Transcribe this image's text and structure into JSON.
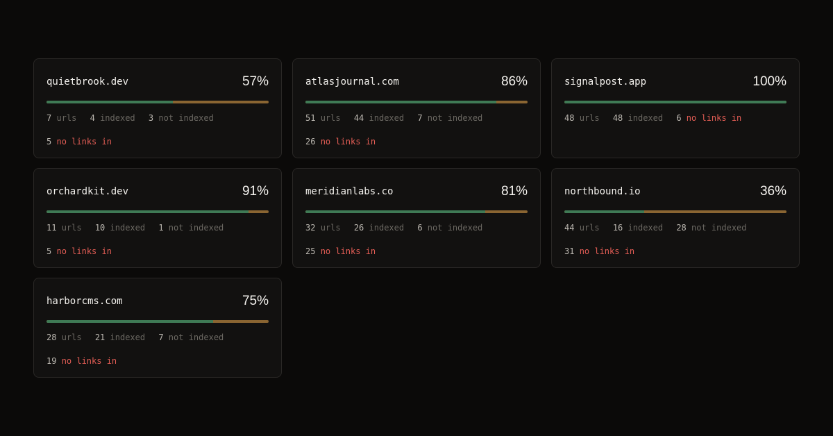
{
  "colors": {
    "background": "#0b0a09",
    "card": "#121110",
    "indexed_bar": "#3f7a55",
    "not_indexed_bar": "#8a6532",
    "warning_text": "#e35d55"
  },
  "labels": {
    "urls": "urls",
    "indexed": "indexed",
    "not_indexed": "not indexed",
    "no_links_in": "no links in"
  },
  "cards": [
    {
      "domain": "quietbrook.dev",
      "percent": "57%",
      "percent_value": 57,
      "urls": "7",
      "indexed": "4",
      "not_indexed": "3",
      "no_links_in": "5"
    },
    {
      "domain": "atlasjournal.com",
      "percent": "86%",
      "percent_value": 86,
      "urls": "51",
      "indexed": "44",
      "not_indexed": "7",
      "no_links_in": "26"
    },
    {
      "domain": "signalpost.app",
      "percent": "100%",
      "percent_value": 100,
      "urls": "48",
      "indexed": "48",
      "not_indexed": null,
      "no_links_in": "6"
    },
    {
      "domain": "orchardkit.dev",
      "percent": "91%",
      "percent_value": 91,
      "urls": "11",
      "indexed": "10",
      "not_indexed": "1",
      "no_links_in": "5"
    },
    {
      "domain": "meridianlabs.co",
      "percent": "81%",
      "percent_value": 81,
      "urls": "32",
      "indexed": "26",
      "not_indexed": "6",
      "no_links_in": "25"
    },
    {
      "domain": "northbound.io",
      "percent": "36%",
      "percent_value": 36,
      "urls": "44",
      "indexed": "16",
      "not_indexed": "28",
      "no_links_in": "31"
    },
    {
      "domain": "harborcms.com",
      "percent": "75%",
      "percent_value": 75,
      "urls": "28",
      "indexed": "21",
      "not_indexed": "7",
      "no_links_in": "19"
    }
  ]
}
